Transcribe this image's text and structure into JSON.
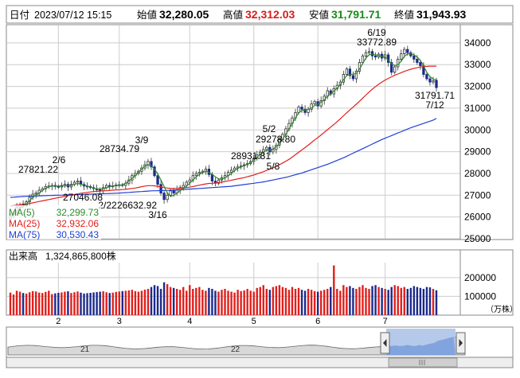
{
  "header": {
    "date_label": "日付",
    "date": "2023/07/12 15:15",
    "open_label": "始値",
    "open": "32,280.05",
    "high_label": "高値",
    "high": "32,312.03",
    "low_label": "安値",
    "low": "31,791.71",
    "close_label": "終値",
    "close": "31,943.93"
  },
  "colors": {
    "up": "#e0201c",
    "down": "#1c2a8c",
    "ma5": "#2c8a2c",
    "ma25": "#e0201c",
    "ma75": "#1f3fd6",
    "high_text": "#d81c1c",
    "low_text": "#1a8a1a",
    "grid": "#cccccc",
    "range_fill": "#a8c0e8"
  },
  "legend": [
    {
      "name": "MA(5)",
      "value": "32,299.73",
      "color": "#2c8a2c"
    },
    {
      "name": "MA(25)",
      "value": "32,932.06",
      "color": "#e0201c"
    },
    {
      "name": "MA(75)",
      "value": "30,530.43",
      "color": "#1f3fd6"
    }
  ],
  "volume_header": {
    "label": "出来高",
    "value": "1,324,865,800株"
  },
  "volume_unit": "（万株）",
  "navigator": {
    "labels": [
      "21",
      "22"
    ],
    "left_handle_icon": "chevron-left-icon",
    "right_handle_icon": "chevron-right-icon"
  },
  "chart_data": [
    {
      "type": "candlestick",
      "ylim": [
        25000,
        34800
      ],
      "y_ticks": [
        25000,
        26000,
        27000,
        28000,
        29000,
        30000,
        31000,
        32000,
        33000,
        34000
      ],
      "y_tick_labels": [
        "25000",
        "26000",
        "27000",
        "28000",
        "29000",
        "30000",
        "31000",
        "32000",
        "33000",
        "34000"
      ],
      "x_tick_labels": [
        "2",
        "3",
        "4",
        "5",
        "6",
        "7"
      ],
      "grid": true,
      "legend_position": "bottom-left",
      "annotations": [
        {
          "date_label": "2/6",
          "value_label": "27821.22"
        },
        {
          "date_label": "2/22",
          "value_label": "27046.08"
        },
        {
          "date_label": "3/9",
          "value_label": "28734.79"
        },
        {
          "date_label": "3/16",
          "value_label": "26632.92"
        },
        {
          "date_label": "5/2",
          "value_label": "29278.80"
        },
        {
          "date_label": "5/8",
          "value_label": "28931.81"
        },
        {
          "date_label": "6/19",
          "value_label": "33772.89"
        },
        {
          "date_label": "7/12",
          "value_label": "31791.71"
        }
      ],
      "closes": [
        26100,
        26200,
        26450,
        26550,
        26550,
        26700,
        26900,
        27050,
        27100,
        27230,
        27300,
        27400,
        27420,
        27450,
        27400,
        27380,
        27450,
        27500,
        27380,
        27500,
        27600,
        27650,
        27500,
        27420,
        27400,
        27350,
        27300,
        27250,
        27200,
        27350,
        27450,
        27400,
        27430,
        27470,
        27480,
        27450,
        27550,
        27700,
        27900,
        28000,
        28100,
        28250,
        28400,
        28550,
        28300,
        27900,
        27500,
        27100,
        26800,
        27000,
        27200,
        27100,
        27250,
        27350,
        27450,
        27600,
        27700,
        27900,
        28000,
        28050,
        28100,
        28200,
        27950,
        27650,
        27550,
        27700,
        27800,
        27900,
        28050,
        28150,
        28250,
        28300,
        28350,
        28400,
        28450,
        28550,
        28700,
        28850,
        28980,
        29100,
        29200,
        28990,
        29100,
        29300,
        29550,
        29800,
        30050,
        30300,
        30550,
        30800,
        31050,
        30950,
        30800,
        30950,
        31200,
        31300,
        31100,
        31350,
        31550,
        31800,
        31650,
        31900,
        32050,
        32200,
        32550,
        32800,
        32500,
        32350,
        32700,
        33100,
        33400,
        33550,
        33600,
        33400,
        33350,
        33480,
        33300,
        33450,
        33100,
        32650,
        32900,
        33250,
        33500,
        33700,
        33550,
        33400,
        33250,
        33100,
        32950,
        32550,
        32350,
        32200,
        32250,
        31943.93
      ],
      "opens": [
        25900,
        26100,
        26200,
        26460,
        26600,
        26550,
        26700,
        26900,
        27050,
        27100,
        27230,
        27300,
        27400,
        27420,
        27450,
        27400,
        27380,
        27450,
        27500,
        27380,
        27500,
        27600,
        27650,
        27500,
        27420,
        27400,
        27350,
        27300,
        27250,
        27200,
        27350,
        27450,
        27400,
        27430,
        27470,
        27480,
        27450,
        27550,
        27700,
        27900,
        28000,
        28100,
        28250,
        28400,
        28550,
        28300,
        27900,
        27500,
        27100,
        26800,
        27000,
        27200,
        27100,
        27250,
        27350,
        27450,
        27600,
        27700,
        27900,
        28000,
        28050,
        28100,
        28200,
        27950,
        27650,
        27550,
        27700,
        27800,
        27900,
        28050,
        28150,
        28250,
        28300,
        28350,
        28400,
        28450,
        28550,
        28700,
        28850,
        28980,
        29100,
        29200,
        28990,
        29100,
        29300,
        29550,
        29800,
        30050,
        30300,
        30550,
        30800,
        31050,
        30950,
        30800,
        30950,
        31200,
        31300,
        31100,
        31350,
        31550,
        31800,
        31650,
        31900,
        32050,
        32200,
        32550,
        32800,
        32500,
        32350,
        32700,
        33100,
        33400,
        33550,
        33600,
        33400,
        33350,
        33480,
        33300,
        33450,
        33100,
        32650,
        32900,
        33250,
        33500,
        33700,
        33550,
        33400,
        33250,
        33100,
        32950,
        32550,
        32350,
        32200,
        32280.05
      ],
      "ma5": [
        26000,
        26100,
        26250,
        26400,
        26500,
        26600,
        26750,
        26900,
        27000,
        27100,
        27220,
        27320,
        27380,
        27420,
        27420,
        27420,
        27420,
        27430,
        27450,
        27450,
        27500,
        27540,
        27500,
        27470,
        27420,
        27380,
        27330,
        27290,
        27280,
        27300,
        27340,
        27390,
        27420,
        27440,
        27450,
        27480,
        27550,
        27650,
        27780,
        27900,
        28050,
        28200,
        28330,
        28400,
        28350,
        28200,
        27980,
        27700,
        27400,
        27100,
        26950,
        27000,
        27100,
        27200,
        27300,
        27420,
        27550,
        27700,
        27840,
        27950,
        28030,
        28100,
        28050,
        27950,
        27850,
        27750,
        27740,
        27800,
        27900,
        28000,
        28130,
        28230,
        28300,
        28370,
        28420,
        28500,
        28620,
        28750,
        28880,
        29000,
        29050,
        29080,
        29120,
        29220,
        29370,
        29580,
        29800,
        30050,
        30300,
        30550,
        30780,
        30900,
        30920,
        30950,
        31000,
        31120,
        31180,
        31280,
        31380,
        31550,
        31650,
        31780,
        31920,
        32080,
        32300,
        32500,
        32560,
        32560,
        32600,
        32800,
        33050,
        33300,
        33450,
        33480,
        33450,
        33420,
        33380,
        33350,
        33200,
        33050,
        32950,
        33000,
        33150,
        33380,
        33500,
        33500,
        33450,
        33350,
        33200,
        32950,
        32650,
        32450,
        32330,
        32299.73
      ],
      "ma25": [
        26500,
        26520,
        26540,
        26560,
        26580,
        26600,
        26620,
        26650,
        26680,
        26710,
        26740,
        26770,
        26800,
        26830,
        26860,
        26890,
        26920,
        26950,
        26980,
        27000,
        27030,
        27060,
        27090,
        27110,
        27130,
        27150,
        27170,
        27180,
        27190,
        27200,
        27210,
        27220,
        27230,
        27240,
        27250,
        27260,
        27270,
        27290,
        27310,
        27330,
        27360,
        27390,
        27420,
        27440,
        27440,
        27430,
        27410,
        27380,
        27350,
        27330,
        27320,
        27310,
        27310,
        27320,
        27330,
        27350,
        27370,
        27400,
        27430,
        27460,
        27490,
        27520,
        27540,
        27550,
        27560,
        27580,
        27600,
        27630,
        27660,
        27690,
        27720,
        27750,
        27780,
        27810,
        27850,
        27890,
        27930,
        27980,
        28030,
        28080,
        28140,
        28200,
        28260,
        28330,
        28400,
        28480,
        28560,
        28650,
        28750,
        28860,
        28970,
        29080,
        29190,
        29300,
        29420,
        29540,
        29650,
        29770,
        29890,
        30010,
        30130,
        30250,
        30380,
        30510,
        30650,
        30790,
        30920,
        31050,
        31180,
        31320,
        31460,
        31600,
        31740,
        31870,
        31990,
        32100,
        32200,
        32290,
        32370,
        32440,
        32510,
        32570,
        32630,
        32690,
        32740,
        32790,
        32830,
        32860,
        32890,
        32910,
        32920,
        32930,
        32930,
        32932.06
      ],
      "ma75": [
        26900,
        26910,
        26920,
        26930,
        26940,
        26950,
        26955,
        26960,
        26965,
        26970,
        26975,
        26980,
        26985,
        26990,
        26995,
        27000,
        27005,
        27010,
        27015,
        27020,
        27025,
        27030,
        27035,
        27040,
        27045,
        27050,
        27055,
        27060,
        27065,
        27070,
        27075,
        27080,
        27085,
        27090,
        27100,
        27110,
        27120,
        27130,
        27140,
        27150,
        27160,
        27170,
        27180,
        27190,
        27200,
        27205,
        27210,
        27215,
        27220,
        27225,
        27230,
        27235,
        27240,
        27250,
        27260,
        27270,
        27280,
        27290,
        27300,
        27310,
        27320,
        27330,
        27340,
        27350,
        27360,
        27370,
        27380,
        27390,
        27400,
        27410,
        27430,
        27450,
        27470,
        27490,
        27510,
        27530,
        27550,
        27570,
        27590,
        27610,
        27640,
        27670,
        27700,
        27730,
        27760,
        27790,
        27820,
        27860,
        27900,
        27940,
        27980,
        28020,
        28070,
        28120,
        28170,
        28220,
        28270,
        28320,
        28370,
        28420,
        28480,
        28540,
        28600,
        28660,
        28720,
        28790,
        28860,
        28930,
        29000,
        29070,
        29140,
        29210,
        29280,
        29350,
        29420,
        29490,
        29560,
        29620,
        29680,
        29740,
        29800,
        29860,
        29920,
        29980,
        30040,
        30100,
        30150,
        30200,
        30250,
        30300,
        30350,
        30400,
        30450,
        30530.43
      ]
    },
    {
      "type": "bar",
      "title": "出来高",
      "ylim": [
        0,
        280000
      ],
      "y_ticks": [
        100000,
        200000
      ],
      "y_tick_labels": [
        "100000",
        "200000"
      ],
      "unit": "万株",
      "values": [
        120000,
        110000,
        130000,
        125000,
        118000,
        115000,
        122000,
        128000,
        126000,
        120000,
        118000,
        124000,
        130000,
        112000,
        116000,
        119000,
        121000,
        125000,
        127000,
        118000,
        122000,
        126000,
        120000,
        115000,
        117000,
        119000,
        121000,
        123000,
        125000,
        127000,
        122000,
        118000,
        120000,
        124000,
        126000,
        128000,
        130000,
        132000,
        135000,
        128000,
        125000,
        130000,
        136000,
        140000,
        150000,
        160000,
        155000,
        140000,
        175000,
        165000,
        150000,
        145000,
        140000,
        135000,
        150000,
        130000,
        160000,
        140000,
        145000,
        150000,
        135000,
        130000,
        145000,
        140000,
        130000,
        125000,
        135000,
        140000,
        130000,
        125000,
        120000,
        135000,
        128000,
        132000,
        140000,
        130000,
        125000,
        145000,
        150000,
        160000,
        140000,
        135000,
        150000,
        155000,
        160000,
        150000,
        145000,
        135000,
        150000,
        140000,
        145000,
        135000,
        130000,
        140000,
        135000,
        128000,
        125000,
        130000,
        135000,
        140000,
        150000,
        265000,
        140000,
        130000,
        160000,
        150000,
        155000,
        145000,
        140000,
        150000,
        160000,
        145000,
        140000,
        155000,
        160000,
        150000,
        145000,
        140000,
        135000,
        150000,
        160000,
        155000,
        145000,
        150000,
        140000,
        145000,
        155000,
        150000,
        145000,
        140000,
        150000,
        148000,
        140000,
        132486.58
      ]
    }
  ]
}
